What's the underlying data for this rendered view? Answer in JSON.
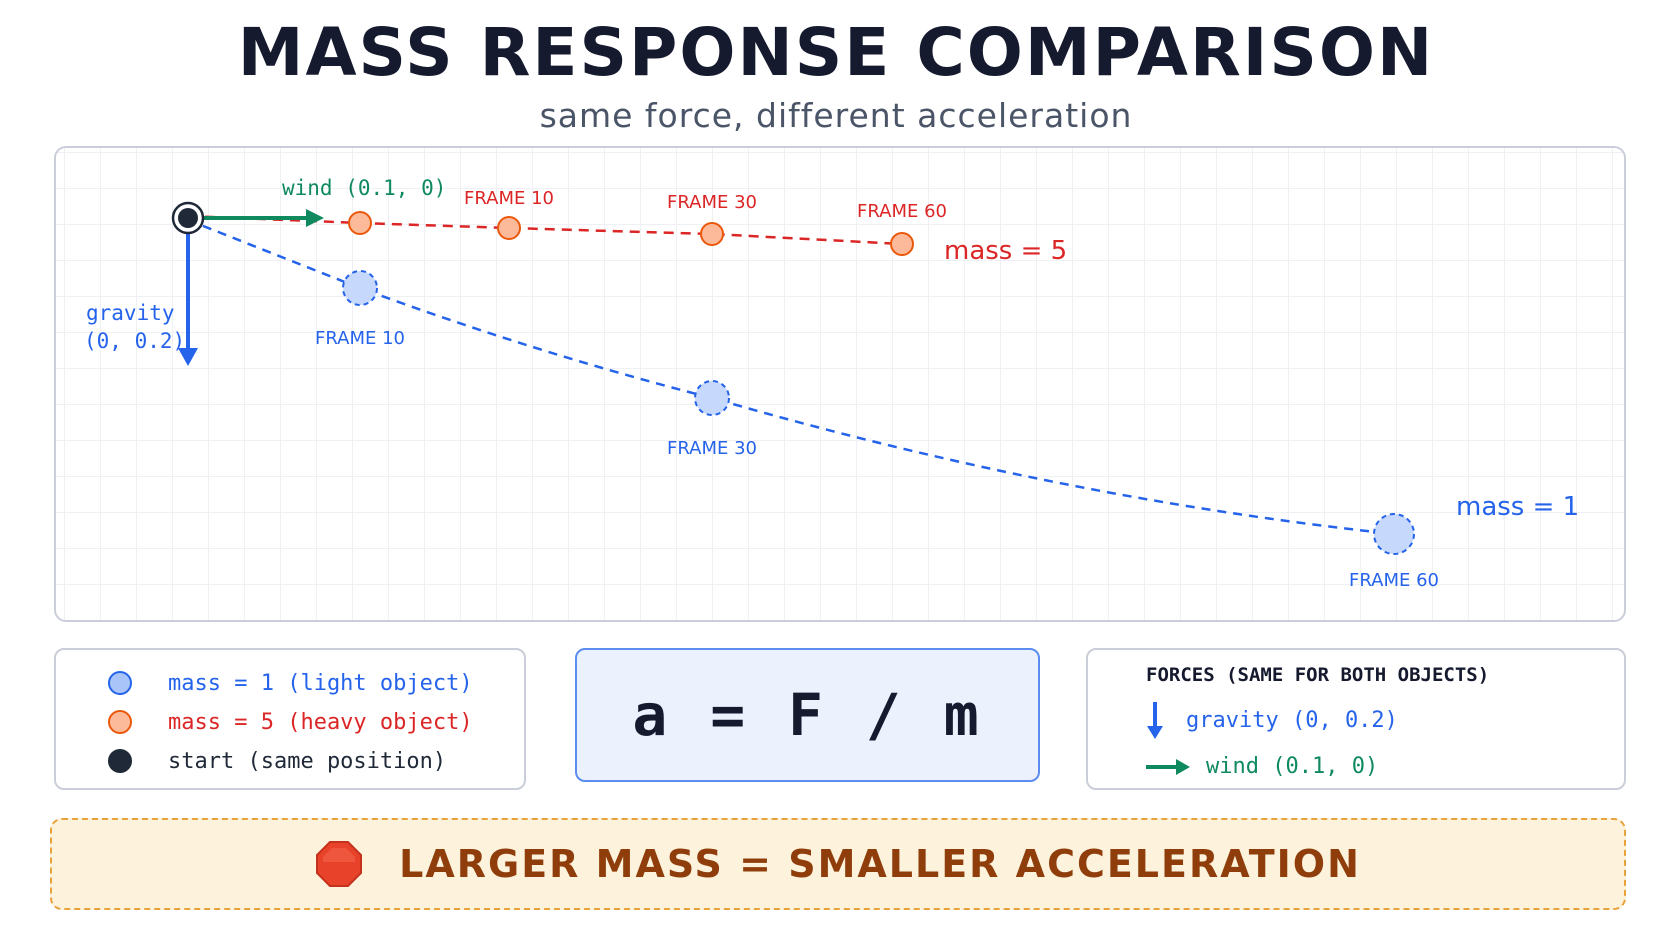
{
  "title": "MASS RESPONSE COMPARISON",
  "subtitle": "same force, different acceleration",
  "diagram": {
    "wind_label": "wind (0.1, 0)",
    "gravity_label_line1": "gravity",
    "gravity_label_line2": "(0, 0.2)",
    "heavy": {
      "mass_label": "mass = 5",
      "frames": [
        "FRAME 10",
        "FRAME 30",
        "FRAME 60"
      ]
    },
    "light": {
      "mass_label": "mass = 1",
      "frames": [
        "FRAME 10",
        "FRAME 30",
        "FRAME 60"
      ]
    }
  },
  "legend": {
    "items": [
      {
        "label": "mass = 1 (light object)"
      },
      {
        "label": "mass = 5 (heavy object)"
      },
      {
        "label": "start (same position)"
      }
    ]
  },
  "formula": "a = F / m",
  "forces": {
    "heading": "FORCES (SAME FOR BOTH OBJECTS)",
    "gravity": "gravity (0, 0.2)",
    "wind": "wind (0.1, 0)"
  },
  "banner": {
    "text": "LARGER MASS = SMALLER ACCELERATION",
    "icon": "stop-octagon-icon"
  },
  "colors": {
    "light": "#2563eb",
    "heavy": "#dc2626",
    "wind": "#0f8a5f",
    "start": "#1f2937"
  }
}
